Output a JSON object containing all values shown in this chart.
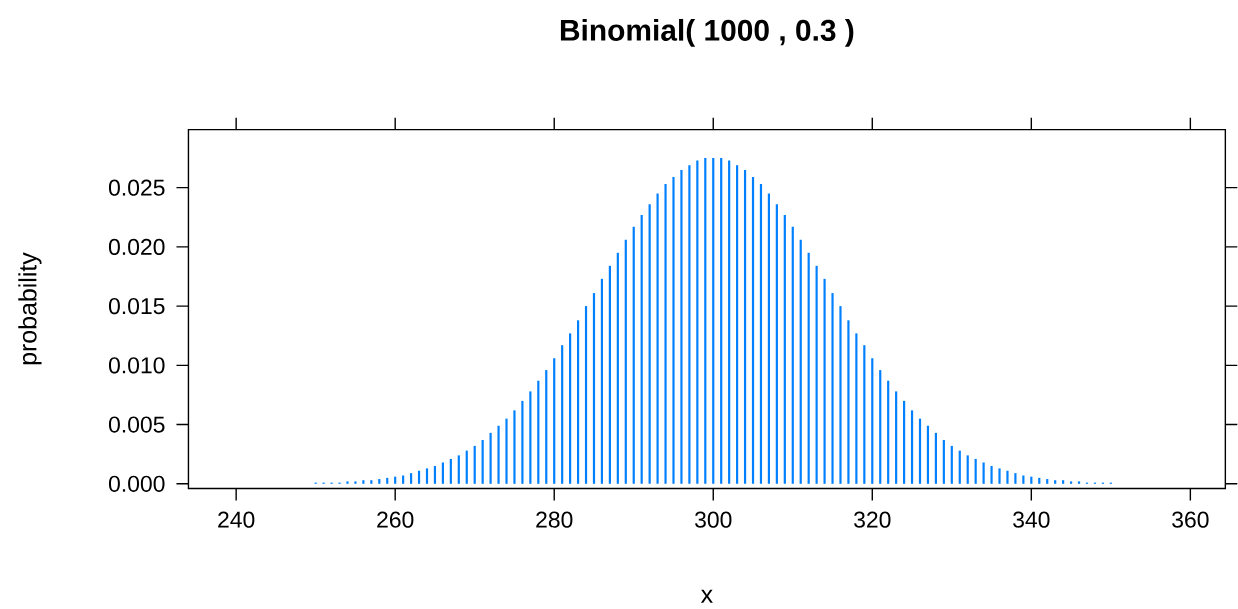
{
  "chart_data": {
    "type": "bar",
    "title": "Binomial( 1000 , 0.3 )",
    "xlabel": "x",
    "ylabel": "probability",
    "x": [
      242,
      243,
      244,
      245,
      246,
      247,
      248,
      249,
      250,
      251,
      252,
      253,
      254,
      255,
      256,
      257,
      258,
      259,
      260,
      261,
      262,
      263,
      264,
      265,
      266,
      267,
      268,
      269,
      270,
      271,
      272,
      273,
      274,
      275,
      276,
      277,
      278,
      279,
      280,
      281,
      282,
      283,
      284,
      285,
      286,
      287,
      288,
      289,
      290,
      291,
      292,
      293,
      294,
      295,
      296,
      297,
      298,
      299,
      300,
      301,
      302,
      303,
      304,
      305,
      306,
      307,
      308,
      309,
      310,
      311,
      312,
      313,
      314,
      315,
      316,
      317,
      318,
      319,
      320,
      321,
      322,
      323,
      324,
      325,
      326,
      327,
      328,
      329,
      330,
      331,
      332,
      333,
      334,
      335,
      336,
      337,
      338,
      339,
      340,
      341,
      342,
      343,
      344,
      345,
      346,
      347,
      348,
      349,
      350,
      351,
      352,
      353,
      354,
      355,
      356,
      357,
      358
    ],
    "values": [
      0,
      0,
      0,
      0,
      0,
      0,
      0,
      0,
      0.0001,
      0.0001,
      0.0001,
      0.0001,
      0.0002,
      0.0002,
      0.0003,
      0.0003,
      0.0004,
      0.0005,
      0.0006,
      0.0007,
      0.0009,
      0.0011,
      0.0013,
      0.0015,
      0.0018,
      0.0021,
      0.0024,
      0.0028,
      0.0032,
      0.0037,
      0.0043,
      0.0049,
      0.0055,
      0.0062,
      0.007,
      0.0078,
      0.0087,
      0.0096,
      0.0106,
      0.0117,
      0.0127,
      0.0138,
      0.015,
      0.0161,
      0.0173,
      0.0184,
      0.0195,
      0.0206,
      0.0217,
      0.0227,
      0.0236,
      0.0245,
      0.0253,
      0.0259,
      0.0265,
      0.0269,
      0.0273,
      0.0275,
      0.0275,
      0.0275,
      0.0273,
      0.0269,
      0.0265,
      0.0259,
      0.0253,
      0.0245,
      0.0236,
      0.0227,
      0.0217,
      0.0206,
      0.0195,
      0.0184,
      0.0173,
      0.0161,
      0.015,
      0.0138,
      0.0127,
      0.0117,
      0.0106,
      0.0096,
      0.0087,
      0.0078,
      0.007,
      0.0062,
      0.0055,
      0.0049,
      0.0043,
      0.0037,
      0.0032,
      0.0028,
      0.0024,
      0.0021,
      0.0018,
      0.0015,
      0.0013,
      0.0011,
      0.0009,
      0.0007,
      0.0006,
      0.0005,
      0.0004,
      0.0003,
      0.0003,
      0.0002,
      0.0002,
      0.0001,
      0.0001,
      0.0001,
      0.0001,
      0,
      0,
      0,
      0,
      0,
      0,
      0,
      0
    ],
    "color": "#0080ff",
    "xlim": [
      234,
      364.4
    ],
    "ylim": [
      -0.0004,
      0.0299
    ],
    "xticks": [
      240,
      260,
      280,
      300,
      320,
      340,
      360
    ],
    "yticks": [
      {
        "value": 0,
        "label": "0.000"
      },
      {
        "value": 0.005,
        "label": "0.005"
      },
      {
        "value": 0.01,
        "label": "0.010"
      },
      {
        "value": 0.015,
        "label": "0.015"
      },
      {
        "value": 0.02,
        "label": "0.020"
      },
      {
        "value": 0.025,
        "label": "0.025"
      }
    ]
  }
}
